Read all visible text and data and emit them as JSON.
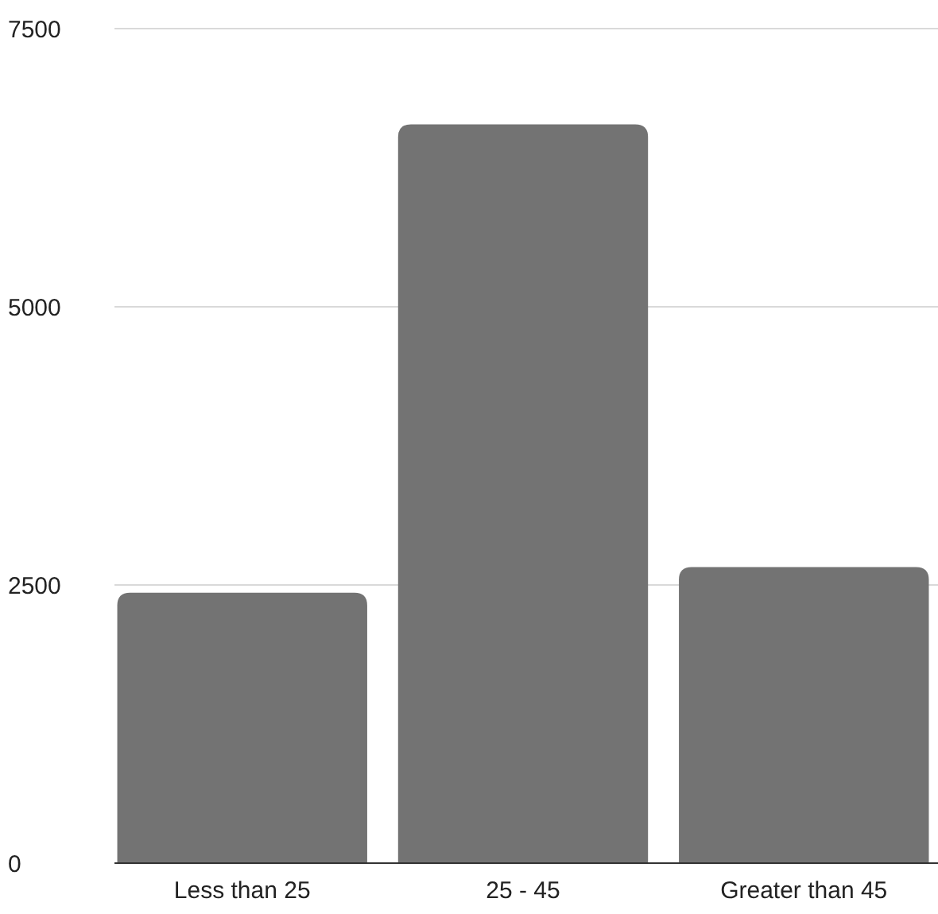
{
  "chart_data": {
    "type": "bar",
    "categories": [
      "Less than 25",
      "25 - 45",
      "Greater than 45"
    ],
    "values": [
      2430,
      6640,
      2660
    ],
    "color": "#737373",
    "ylim": [
      0,
      7500
    ],
    "yticks": [
      0,
      2500,
      5000,
      7500
    ],
    "grid": "y"
  }
}
